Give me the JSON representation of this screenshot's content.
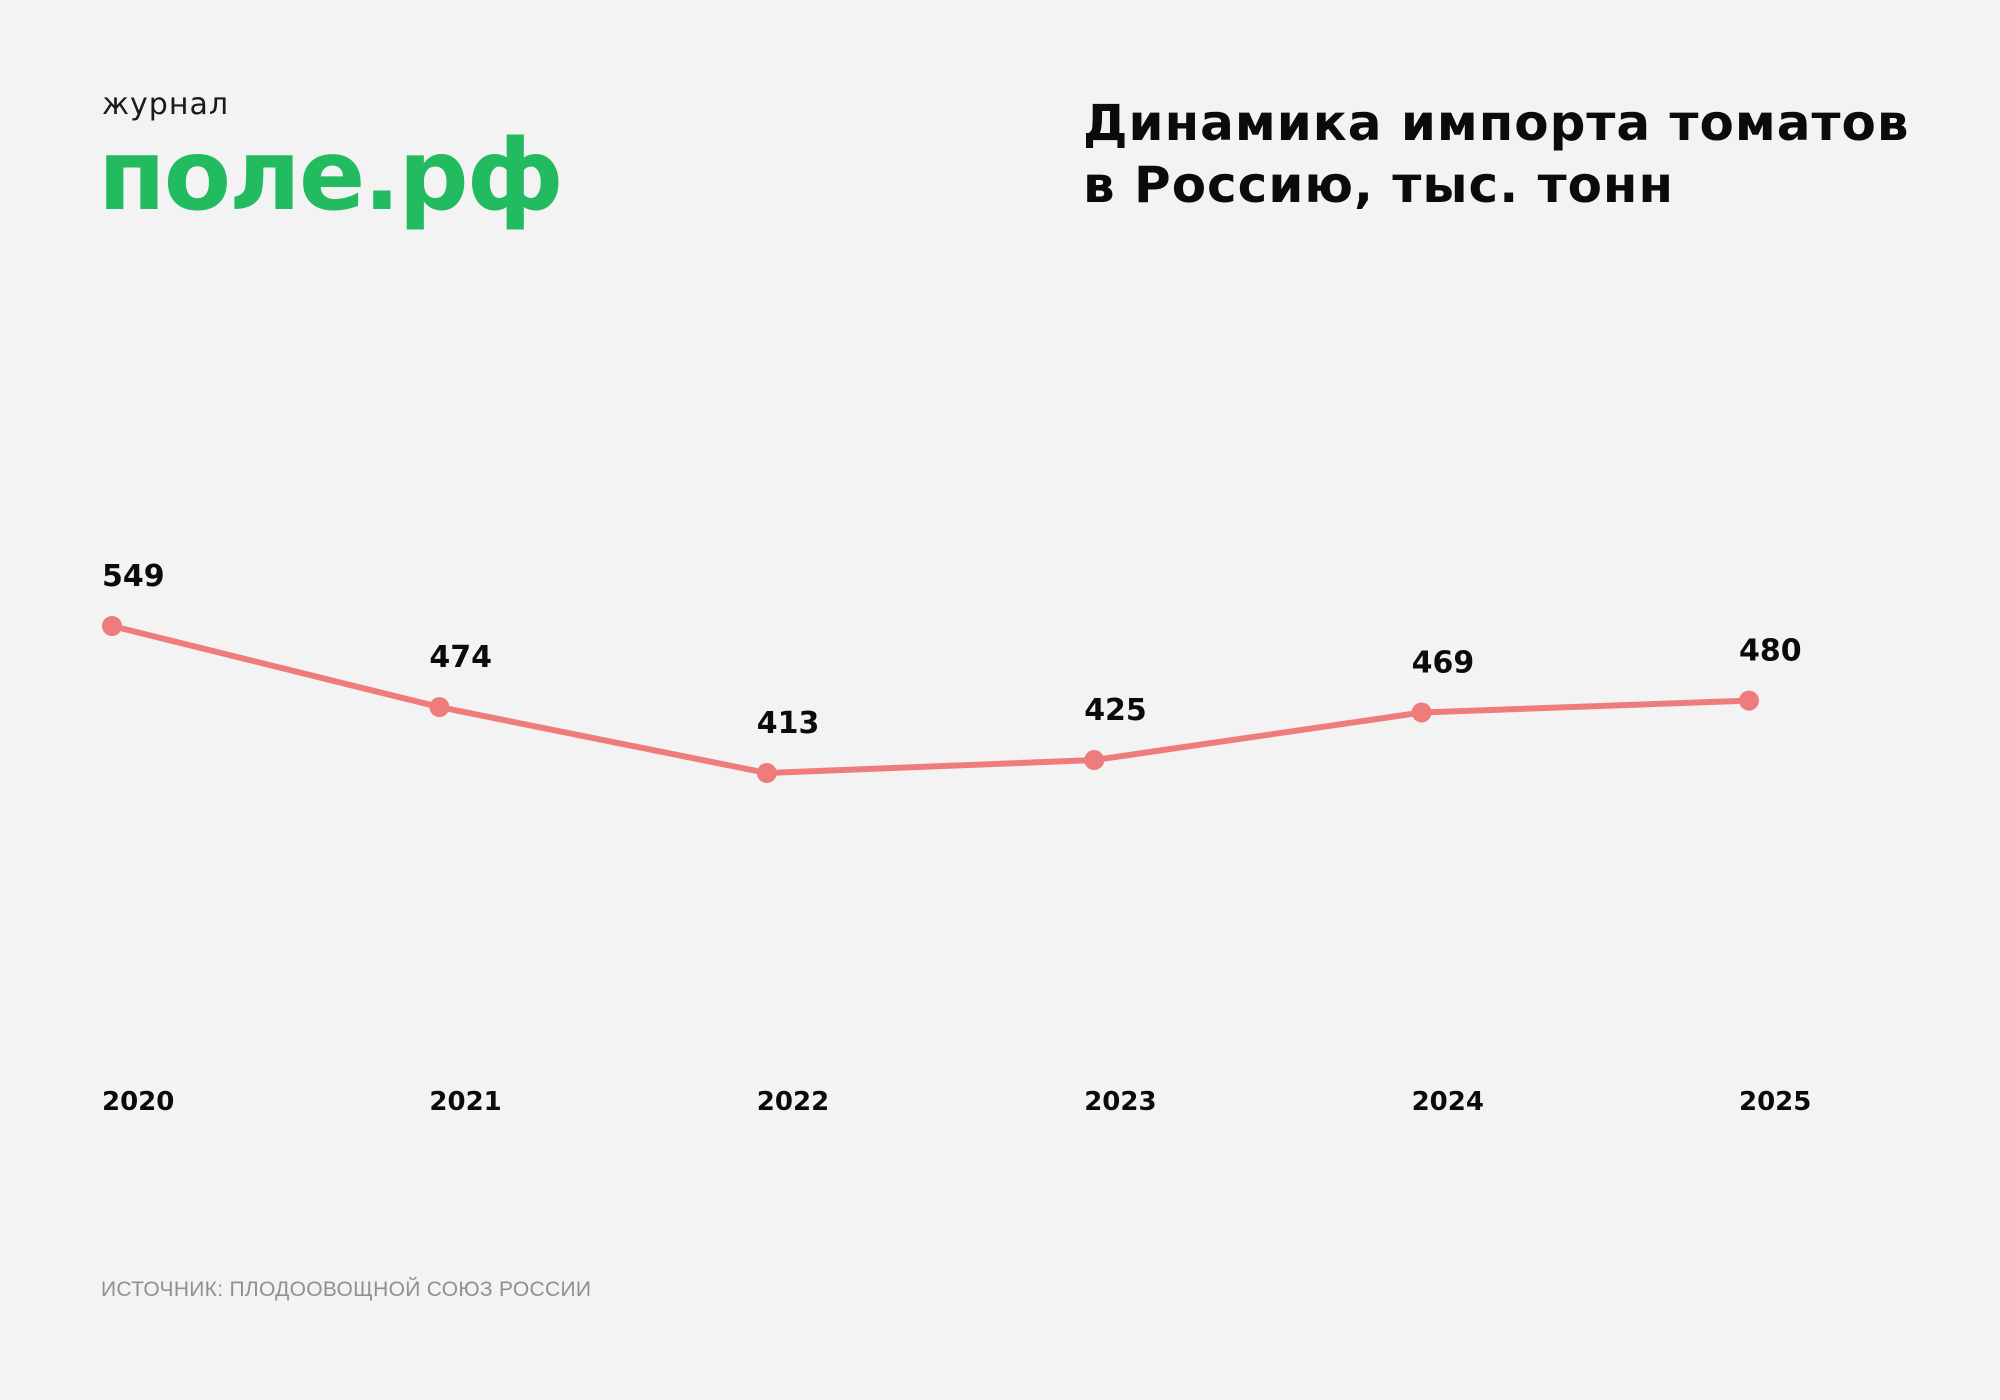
{
  "logo": {
    "small": "журнал",
    "big": "поле.рф",
    "color": "#22bb5f"
  },
  "title_line1": "Динамика импорта томатов",
  "title_line2": "в Россию, тыс. тонн",
  "source": "ИСТОЧНИК: ПЛОДООВОЩНОЙ СОЮЗ РОССИИ",
  "chart_data": {
    "type": "line",
    "title": "Динамика импорта томатов в Россию, тыс. тонн",
    "categories": [
      "2020",
      "2021",
      "2022",
      "2023",
      "2024",
      "2025"
    ],
    "values": [
      549,
      474,
      413,
      425,
      469,
      480
    ],
    "data_labels": [
      "549",
      "474",
      "413",
      "425",
      "469",
      "480"
    ],
    "line_color": "#ef7c7c",
    "grid": false,
    "y_axis_visible": false
  }
}
